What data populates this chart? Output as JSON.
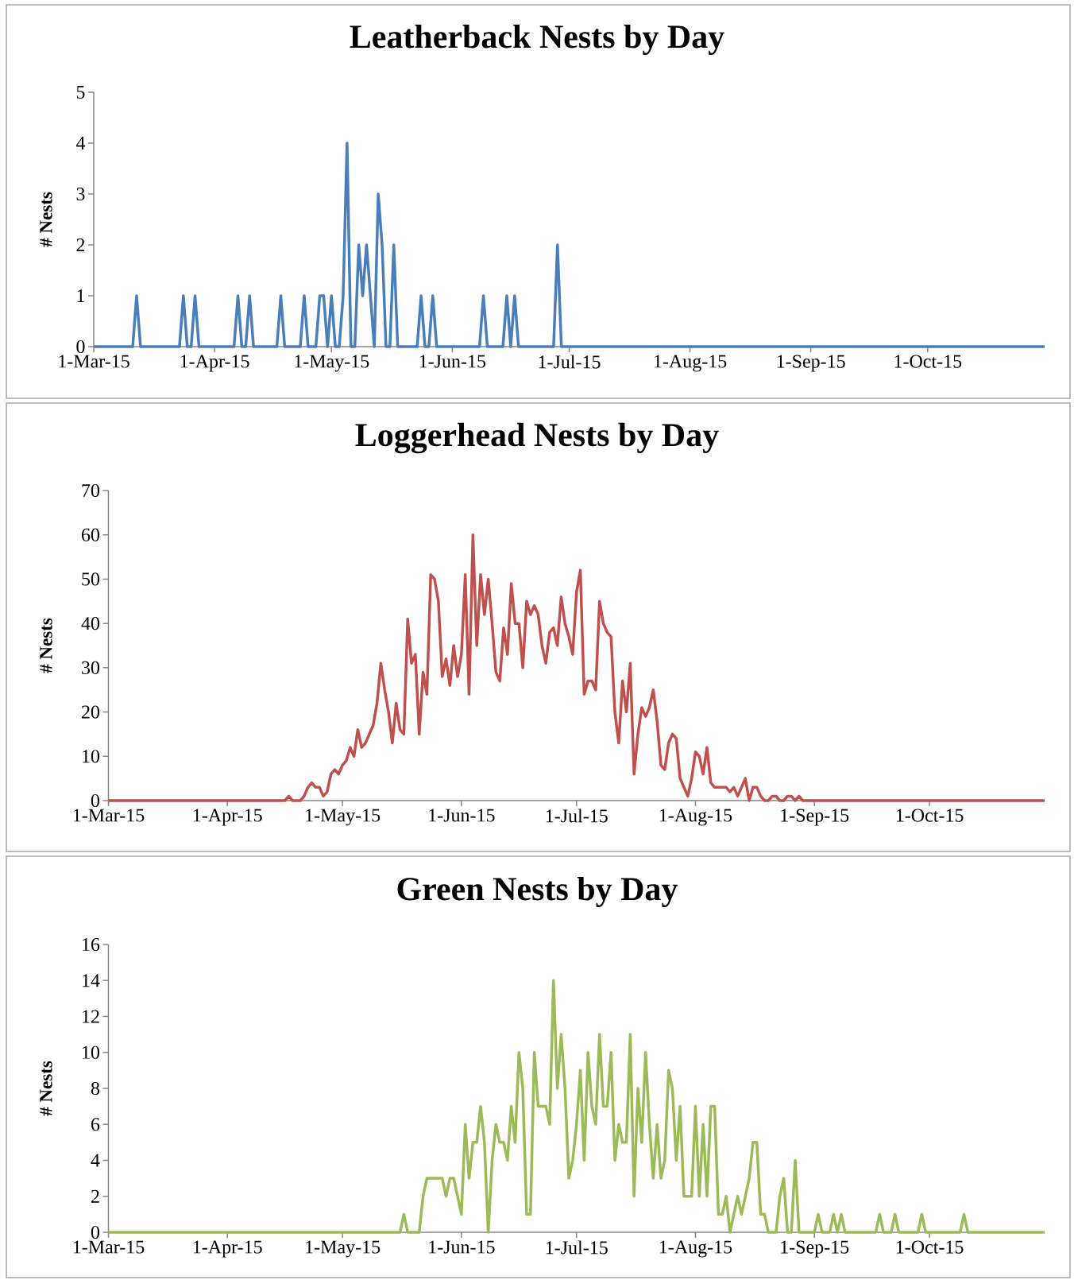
{
  "chart_data": [
    {
      "type": "line",
      "title": "Leatherback Nests by Day",
      "ylabel": "# Nests",
      "color": "#4a7ebb",
      "x": [
        "2015-03-01",
        "2015-03-11",
        "2015-03-12",
        "2015-03-13",
        "2015-03-23",
        "2015-03-24",
        "2015-03-25",
        "2015-03-26",
        "2015-03-27",
        "2015-03-28",
        "2015-04-06",
        "2015-04-07",
        "2015-04-08",
        "2015-04-09",
        "2015-04-10",
        "2015-04-11",
        "2015-04-17",
        "2015-04-18",
        "2015-04-19",
        "2015-04-23",
        "2015-04-24",
        "2015-04-25",
        "2015-04-27",
        "2015-04-28",
        "2015-04-29",
        "2015-04-30",
        "2015-05-01",
        "2015-05-02",
        "2015-05-03",
        "2015-05-04",
        "2015-05-05",
        "2015-05-06",
        "2015-05-07",
        "2015-05-08",
        "2015-05-09",
        "2015-05-10",
        "2015-05-11",
        "2015-05-12",
        "2015-05-13",
        "2015-05-14",
        "2015-05-15",
        "2015-05-16",
        "2015-05-17",
        "2015-05-18",
        "2015-05-23",
        "2015-05-24",
        "2015-05-25",
        "2015-05-26",
        "2015-05-27",
        "2015-05-28",
        "2015-06-08",
        "2015-06-09",
        "2015-06-10",
        "2015-06-14",
        "2015-06-15",
        "2015-06-16",
        "2015-06-17",
        "2015-06-18",
        "2015-06-27",
        "2015-06-28",
        "2015-06-29",
        "2015-10-31"
      ],
      "values": [
        0,
        0,
        1,
        0,
        0,
        1,
        0,
        0,
        1,
        0,
        0,
        1,
        0,
        0,
        1,
        0,
        0,
        1,
        0,
        0,
        1,
        0,
        0,
        1,
        1,
        0,
        1,
        0,
        0,
        1,
        4,
        0,
        0,
        2,
        1,
        2,
        1,
        0,
        3,
        2,
        0,
        0,
        2,
        0,
        0,
        1,
        0,
        0,
        1,
        0,
        0,
        1,
        0,
        0,
        1,
        0,
        1,
        0,
        0,
        2,
        0,
        0
      ],
      "xlim": [
        "2015-03-01",
        "2015-10-31"
      ],
      "xticks": [
        {
          "value": "2015-03-01",
          "label": "1-Mar-15"
        },
        {
          "value": "2015-04-01",
          "label": "1-Apr-15"
        },
        {
          "value": "2015-05-01",
          "label": "1-May-15"
        },
        {
          "value": "2015-06-01",
          "label": "1-Jun-15"
        },
        {
          "value": "2015-07-01",
          "label": "1-Jul-15"
        },
        {
          "value": "2015-08-01",
          "label": "1-Aug-15"
        },
        {
          "value": "2015-09-01",
          "label": "1-Sep-15"
        },
        {
          "value": "2015-10-01",
          "label": "1-Oct-15"
        }
      ],
      "ylim": [
        0,
        5
      ],
      "yticks": [
        0,
        1,
        2,
        3,
        4,
        5
      ]
    },
    {
      "type": "line",
      "title": "Loggerhead Nests by Day",
      "ylabel": "# Nests",
      "color": "#c0504d",
      "x": [
        "2015-03-01",
        "2015-04-16",
        "2015-04-17",
        "2015-04-18",
        "2015-04-20",
        "2015-04-21",
        "2015-04-22",
        "2015-04-23",
        "2015-04-24",
        "2015-04-25",
        "2015-04-26",
        "2015-04-27",
        "2015-04-28",
        "2015-04-29",
        "2015-04-30",
        "2015-05-01",
        "2015-05-02",
        "2015-05-03",
        "2015-05-04",
        "2015-05-05",
        "2015-05-06",
        "2015-05-07",
        "2015-05-08",
        "2015-05-09",
        "2015-05-10",
        "2015-05-11",
        "2015-05-12",
        "2015-05-13",
        "2015-05-14",
        "2015-05-15",
        "2015-05-16",
        "2015-05-17",
        "2015-05-18",
        "2015-05-19",
        "2015-05-20",
        "2015-05-21",
        "2015-05-22",
        "2015-05-23",
        "2015-05-24",
        "2015-05-25",
        "2015-05-26",
        "2015-05-27",
        "2015-05-28",
        "2015-05-29",
        "2015-05-30",
        "2015-05-31",
        "2015-06-01",
        "2015-06-02",
        "2015-06-03",
        "2015-06-04",
        "2015-06-05",
        "2015-06-06",
        "2015-06-07",
        "2015-06-08",
        "2015-06-09",
        "2015-06-10",
        "2015-06-11",
        "2015-06-12",
        "2015-06-13",
        "2015-06-14",
        "2015-06-15",
        "2015-06-16",
        "2015-06-17",
        "2015-06-18",
        "2015-06-19",
        "2015-06-20",
        "2015-06-21",
        "2015-06-22",
        "2015-06-23",
        "2015-06-24",
        "2015-06-25",
        "2015-06-26",
        "2015-06-27",
        "2015-06-28",
        "2015-06-29",
        "2015-06-30",
        "2015-07-01",
        "2015-07-02",
        "2015-07-03",
        "2015-07-04",
        "2015-07-05",
        "2015-07-06",
        "2015-07-07",
        "2015-07-08",
        "2015-07-09",
        "2015-07-10",
        "2015-07-11",
        "2015-07-12",
        "2015-07-13",
        "2015-07-14",
        "2015-07-15",
        "2015-07-16",
        "2015-07-17",
        "2015-07-18",
        "2015-07-19",
        "2015-07-20",
        "2015-07-21",
        "2015-07-22",
        "2015-07-23",
        "2015-07-24",
        "2015-07-25",
        "2015-07-26",
        "2015-07-27",
        "2015-07-28",
        "2015-07-29",
        "2015-07-30",
        "2015-07-31",
        "2015-08-01",
        "2015-08-02",
        "2015-08-03",
        "2015-08-04",
        "2015-08-05",
        "2015-08-06",
        "2015-08-07",
        "2015-08-08",
        "2015-08-09",
        "2015-08-10",
        "2015-08-11",
        "2015-08-12",
        "2015-08-13",
        "2015-08-14",
        "2015-08-15",
        "2015-08-16",
        "2015-08-17",
        "2015-08-18",
        "2015-08-19",
        "2015-08-20",
        "2015-08-21",
        "2015-08-22",
        "2015-08-23",
        "2015-08-24",
        "2015-08-25",
        "2015-08-26",
        "2015-08-27",
        "2015-08-28",
        "2015-08-29",
        "2015-10-31"
      ],
      "values": [
        0,
        0,
        1,
        0,
        0,
        1,
        3,
        4,
        3,
        3,
        1,
        2,
        6,
        7,
        6,
        8,
        9,
        12,
        10,
        16,
        12,
        13,
        15,
        17,
        22,
        31,
        25,
        20,
        13,
        22,
        16,
        15,
        41,
        31,
        33,
        15,
        29,
        24,
        51,
        50,
        45,
        28,
        32,
        26,
        35,
        28,
        33,
        51,
        24,
        60,
        35,
        51,
        42,
        50,
        40,
        29,
        27,
        39,
        33,
        49,
        40,
        40,
        30,
        45,
        42,
        44,
        42,
        35,
        31,
        38,
        39,
        35,
        46,
        40,
        37,
        33,
        47,
        52,
        24,
        27,
        27,
        25,
        45,
        40,
        38,
        37,
        20,
        13,
        27,
        20,
        31,
        6,
        15,
        21,
        19,
        21,
        25,
        18,
        8,
        7,
        13,
        15,
        14,
        5,
        3,
        1,
        5,
        11,
        10,
        6,
        12,
        4,
        3,
        3,
        3,
        3,
        2,
        3,
        1,
        3,
        5,
        0,
        3,
        3,
        1,
        0,
        0,
        1,
        1,
        0,
        0,
        1,
        1,
        0,
        1,
        0,
        0
      ],
      "xlim": [
        "2015-03-01",
        "2015-10-31"
      ],
      "xticks": [
        {
          "value": "2015-03-01",
          "label": "1-Mar-15"
        },
        {
          "value": "2015-04-01",
          "label": "1-Apr-15"
        },
        {
          "value": "2015-05-01",
          "label": "1-May-15"
        },
        {
          "value": "2015-06-01",
          "label": "1-Jun-15"
        },
        {
          "value": "2015-07-01",
          "label": "1-Jul-15"
        },
        {
          "value": "2015-08-01",
          "label": "1-Aug-15"
        },
        {
          "value": "2015-09-01",
          "label": "1-Sep-15"
        },
        {
          "value": "2015-10-01",
          "label": "1-Oct-15"
        }
      ],
      "ylim": [
        0,
        70
      ],
      "yticks": [
        0,
        10,
        20,
        30,
        40,
        50,
        60,
        70
      ]
    },
    {
      "type": "line",
      "title": "Green Nests by Day",
      "ylabel": "# Nests",
      "color": "#9bbb59",
      "x": [
        "2015-03-01",
        "2015-05-16",
        "2015-05-17",
        "2015-05-18",
        "2015-05-21",
        "2015-05-22",
        "2015-05-23",
        "2015-05-24",
        "2015-05-25",
        "2015-05-26",
        "2015-05-27",
        "2015-05-28",
        "2015-05-29",
        "2015-05-30",
        "2015-05-31",
        "2015-06-01",
        "2015-06-02",
        "2015-06-03",
        "2015-06-04",
        "2015-06-05",
        "2015-06-06",
        "2015-06-07",
        "2015-06-08",
        "2015-06-09",
        "2015-06-10",
        "2015-06-11",
        "2015-06-12",
        "2015-06-13",
        "2015-06-14",
        "2015-06-15",
        "2015-06-16",
        "2015-06-17",
        "2015-06-18",
        "2015-06-19",
        "2015-06-20",
        "2015-06-21",
        "2015-06-22",
        "2015-06-23",
        "2015-06-24",
        "2015-06-25",
        "2015-06-26",
        "2015-06-27",
        "2015-06-28",
        "2015-06-29",
        "2015-06-30",
        "2015-07-01",
        "2015-07-02",
        "2015-07-03",
        "2015-07-04",
        "2015-07-05",
        "2015-07-06",
        "2015-07-07",
        "2015-07-08",
        "2015-07-09",
        "2015-07-10",
        "2015-07-11",
        "2015-07-12",
        "2015-07-13",
        "2015-07-14",
        "2015-07-15",
        "2015-07-16",
        "2015-07-17",
        "2015-07-18",
        "2015-07-19",
        "2015-07-20",
        "2015-07-21",
        "2015-07-22",
        "2015-07-23",
        "2015-07-24",
        "2015-07-25",
        "2015-07-26",
        "2015-07-27",
        "2015-07-28",
        "2015-07-29",
        "2015-07-30",
        "2015-07-31",
        "2015-08-01",
        "2015-08-02",
        "2015-08-03",
        "2015-08-04",
        "2015-08-05",
        "2015-08-06",
        "2015-08-07",
        "2015-08-08",
        "2015-08-09",
        "2015-08-10",
        "2015-08-11",
        "2015-08-12",
        "2015-08-13",
        "2015-08-14",
        "2015-08-15",
        "2015-08-16",
        "2015-08-17",
        "2015-08-18",
        "2015-08-19",
        "2015-08-20",
        "2015-08-22",
        "2015-08-23",
        "2015-08-24",
        "2015-08-25",
        "2015-08-26",
        "2015-08-27",
        "2015-08-28",
        "2015-09-01",
        "2015-09-02",
        "2015-09-03",
        "2015-09-05",
        "2015-09-06",
        "2015-09-07",
        "2015-09-08",
        "2015-09-09",
        "2015-09-17",
        "2015-09-18",
        "2015-09-19",
        "2015-09-21",
        "2015-09-22",
        "2015-09-23",
        "2015-09-28",
        "2015-09-29",
        "2015-09-30",
        "2015-10-09",
        "2015-10-10",
        "2015-10-11",
        "2015-10-31"
      ],
      "values": [
        0,
        0,
        1,
        0,
        0,
        2,
        3,
        3,
        3,
        3,
        3,
        2,
        3,
        3,
        2,
        1,
        6,
        3,
        5,
        5,
        7,
        5,
        0,
        4,
        6,
        5,
        5,
        4,
        7,
        5,
        10,
        8,
        1,
        1,
        10,
        7,
        7,
        7,
        6,
        14,
        8,
        11,
        8,
        3,
        4,
        6,
        9,
        4,
        10,
        7,
        6,
        11,
        7,
        7,
        10,
        4,
        6,
        5,
        5,
        11,
        2,
        8,
        5,
        10,
        6,
        3,
        6,
        3,
        4,
        9,
        8,
        4,
        7,
        2,
        2,
        2,
        7,
        2,
        6,
        2,
        7,
        7,
        1,
        1,
        2,
        0,
        1,
        2,
        1,
        2,
        3,
        5,
        5,
        1,
        1,
        0,
        0,
        2,
        3,
        0,
        0,
        4,
        0,
        0,
        1,
        0,
        0,
        1,
        0,
        1,
        0,
        0,
        1,
        0,
        0,
        1,
        0,
        0,
        1,
        0,
        0,
        1,
        0,
        0
      ],
      "xlim": [
        "2015-03-01",
        "2015-10-31"
      ],
      "xticks": [
        {
          "value": "2015-03-01",
          "label": "1-Mar-15"
        },
        {
          "value": "2015-04-01",
          "label": "1-Apr-15"
        },
        {
          "value": "2015-05-01",
          "label": "1-May-15"
        },
        {
          "value": "2015-06-01",
          "label": "1-Jun-15"
        },
        {
          "value": "2015-07-01",
          "label": "1-Jul-15"
        },
        {
          "value": "2015-08-01",
          "label": "1-Aug-15"
        },
        {
          "value": "2015-09-01",
          "label": "1-Sep-15"
        },
        {
          "value": "2015-10-01",
          "label": "1-Oct-15"
        }
      ],
      "ylim": [
        0,
        16
      ],
      "yticks": [
        0,
        2,
        4,
        6,
        8,
        10,
        12,
        14,
        16
      ]
    }
  ]
}
